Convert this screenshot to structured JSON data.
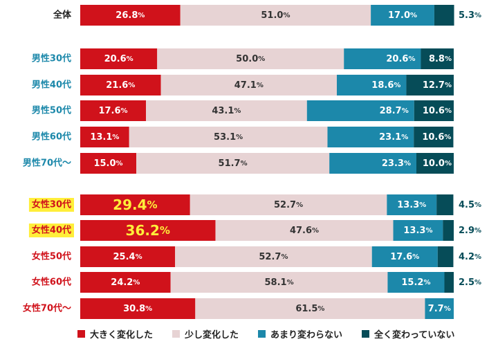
{
  "chart_data": {
    "type": "bar",
    "orientation": "horizontal",
    "stacked": true,
    "xlim": [
      0,
      100
    ],
    "unit": "%",
    "categories": [
      "全体",
      "男性30代",
      "男性40代",
      "男性50代",
      "男性60代",
      "男性70代～",
      "女性30代",
      "女性40代",
      "女性50代",
      "女性60代",
      "女性70代～"
    ],
    "category_groups": [
      "total",
      "male",
      "male",
      "male",
      "male",
      "male",
      "female",
      "female",
      "female",
      "female",
      "female"
    ],
    "highlighted_categories": [
      "女性30代",
      "女性40代"
    ],
    "series": [
      {
        "name": "大きく変化した",
        "color": "#d0121b",
        "values": [
          26.8,
          20.6,
          21.6,
          17.6,
          13.1,
          15.0,
          29.4,
          36.2,
          25.4,
          24.2,
          30.8
        ]
      },
      {
        "name": "少し変化した",
        "color": "#e7d3d4",
        "values": [
          51.0,
          50.0,
          47.1,
          43.1,
          53.1,
          51.7,
          52.7,
          47.6,
          52.7,
          58.1,
          61.5
        ]
      },
      {
        "name": "あまり変わらない",
        "color": "#1c88aa",
        "values": [
          17.0,
          20.6,
          18.6,
          28.7,
          23.1,
          23.3,
          13.3,
          13.3,
          17.6,
          15.2,
          7.7
        ]
      },
      {
        "name": "全く変わっていない",
        "color": "#064c58",
        "values": [
          5.3,
          8.8,
          12.7,
          10.6,
          10.6,
          10.0,
          4.5,
          2.9,
          4.2,
          2.5,
          null
        ]
      }
    ],
    "label_colors": {
      "total": "#222222",
      "male": "#1c88aa",
      "female": "#d0121b"
    },
    "highlight_label_bg": "#ffee3a",
    "highlight_value_color": "#ffee3a",
    "legend_position": "bottom",
    "grid": false
  }
}
